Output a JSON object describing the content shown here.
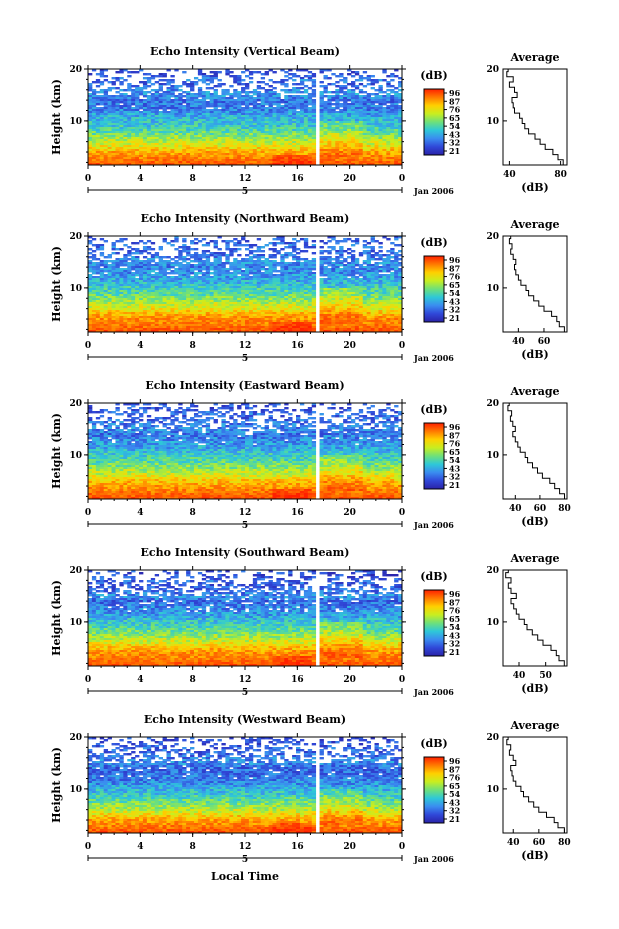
{
  "figure": {
    "xlabel": "Local Time",
    "date_label": "Jan 2006",
    "day_label": "5",
    "colorbar_unit": "(dB)",
    "avg_title": "Average",
    "avg_xunit": "(dB)",
    "colorbar_ticks": [
      "96",
      "87",
      "76",
      "65",
      "54",
      "43",
      "32",
      "21"
    ],
    "colorbar_colors": [
      "#ff2000",
      "#ff7a00",
      "#ffd000",
      "#c8ee20",
      "#6ee07a",
      "#2ec8d8",
      "#3a8cf0",
      "#3048d8",
      "#2a22a8"
    ]
  },
  "chart_data": [
    {
      "type": "heatmap",
      "title": "Echo Intensity (Vertical Beam)",
      "ylabel": "Height (km)",
      "x_ticks": [
        "0",
        "4",
        "8",
        "12",
        "16",
        "20",
        "0"
      ],
      "y_ticks": [
        "20",
        "10"
      ],
      "ylim": [
        1.5,
        20
      ],
      "avg_x_ticks": [
        "40",
        "80"
      ],
      "avg_xlim": [
        35,
        85
      ],
      "average_profile": {
        "height_km": [
          2,
          3,
          4,
          5,
          6,
          7,
          8,
          9,
          10,
          11,
          12,
          13,
          14,
          15,
          16,
          17,
          18,
          19,
          20
        ],
        "db": [
          82,
          78,
          74,
          68,
          64,
          60,
          55,
          52,
          50,
          48,
          44,
          43,
          42,
          46,
          44,
          40,
          43,
          38,
          39
        ]
      }
    },
    {
      "type": "heatmap",
      "title": "Echo Intensity (Northward Beam)",
      "ylabel": "Height (km)",
      "x_ticks": [
        "0",
        "4",
        "8",
        "12",
        "16",
        "20",
        "0"
      ],
      "y_ticks": [
        "20",
        "10"
      ],
      "ylim": [
        1.5,
        20
      ],
      "avg_x_ticks": [
        "40",
        "60"
      ],
      "avg_xlim": [
        28,
        78
      ],
      "average_profile": {
        "height_km": [
          2,
          3,
          4,
          5,
          6,
          7,
          8,
          9,
          10,
          11,
          12,
          13,
          14,
          15,
          16,
          17,
          18,
          19,
          20
        ],
        "db": [
          76,
          72,
          70,
          66,
          60,
          56,
          52,
          48,
          46,
          42,
          40,
          38,
          37,
          38,
          36,
          34,
          35,
          33,
          34
        ]
      }
    },
    {
      "type": "heatmap",
      "title": "Echo Intensity (Eastward Beam)",
      "ylabel": "Height (km)",
      "x_ticks": [
        "0",
        "4",
        "8",
        "12",
        "16",
        "20",
        "0"
      ],
      "y_ticks": [
        "20",
        "10"
      ],
      "ylim": [
        1.5,
        20
      ],
      "avg_x_ticks": [
        "40",
        "60",
        "80"
      ],
      "avg_xlim": [
        30,
        82
      ],
      "average_profile": {
        "height_km": [
          2,
          3,
          4,
          5,
          6,
          7,
          8,
          9,
          10,
          11,
          12,
          13,
          14,
          15,
          16,
          17,
          18,
          19,
          20
        ],
        "db": [
          80,
          76,
          72,
          68,
          62,
          58,
          54,
          50,
          48,
          44,
          42,
          40,
          38,
          40,
          38,
          36,
          37,
          34,
          35
        ]
      }
    },
    {
      "type": "heatmap",
      "title": "Echo Intensity (Southward Beam)",
      "ylabel": "Height (km)",
      "x_ticks": [
        "0",
        "4",
        "8",
        "12",
        "16",
        "20",
        "0"
      ],
      "y_ticks": [
        "20",
        "10"
      ],
      "ylim": [
        1.5,
        20
      ],
      "avg_x_ticks": [
        "40",
        "50"
      ],
      "avg_xlim": [
        34,
        58
      ],
      "average_profile": {
        "height_km": [
          2,
          3,
          4,
          5,
          6,
          7,
          8,
          9,
          10,
          11,
          12,
          13,
          14,
          15,
          16,
          17,
          18,
          19,
          20
        ],
        "db": [
          57,
          55,
          54,
          52,
          49,
          47,
          45,
          43,
          42,
          40,
          39,
          38,
          37,
          39,
          37,
          36,
          37,
          35,
          36
        ]
      }
    },
    {
      "type": "heatmap",
      "title": "Echo Intensity (Westward Beam)",
      "ylabel": "Height (km)",
      "x_ticks": [
        "0",
        "4",
        "8",
        "12",
        "16",
        "20",
        "0"
      ],
      "y_ticks": [
        "20",
        "10"
      ],
      "ylim": [
        1.5,
        20
      ],
      "avg_x_ticks": [
        "40",
        "60",
        "80"
      ],
      "avg_xlim": [
        32,
        82
      ],
      "average_profile": {
        "height_km": [
          2,
          3,
          4,
          5,
          6,
          7,
          8,
          9,
          10,
          11,
          12,
          13,
          14,
          15,
          16,
          17,
          18,
          19,
          20
        ],
        "db": [
          80,
          75,
          72,
          66,
          60,
          56,
          52,
          48,
          46,
          42,
          40,
          39,
          38,
          42,
          40,
          37,
          38,
          35,
          36
        ]
      }
    }
  ]
}
